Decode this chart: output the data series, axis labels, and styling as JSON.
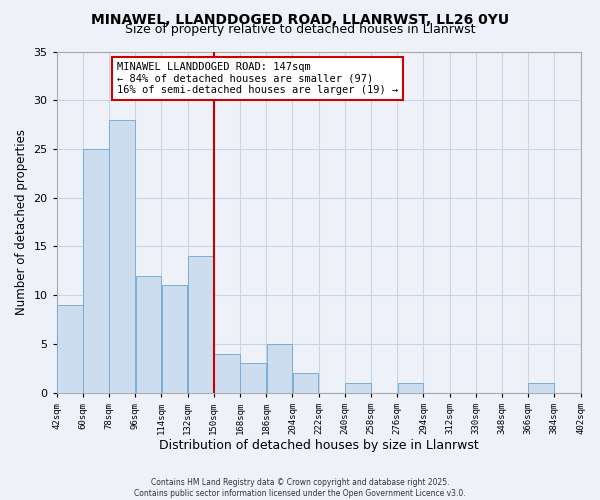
{
  "title_line1": "MINAWEL, LLANDDOGED ROAD, LLANRWST, LL26 0YU",
  "title_line2": "Size of property relative to detached houses in Llanrwst",
  "xlabel": "Distribution of detached houses by size in Llanrwst",
  "ylabel": "Number of detached properties",
  "bin_labels": [
    "42sqm",
    "60sqm",
    "78sqm",
    "96sqm",
    "114sqm",
    "132sqm",
    "150sqm",
    "168sqm",
    "186sqm",
    "204sqm",
    "222sqm",
    "240sqm",
    "258sqm",
    "276sqm",
    "294sqm",
    "312sqm",
    "330sqm",
    "348sqm",
    "366sqm",
    "384sqm",
    "402sqm"
  ],
  "bin_edges": [
    42,
    60,
    78,
    96,
    114,
    132,
    150,
    168,
    186,
    204,
    222,
    240,
    258,
    276,
    294,
    312,
    330,
    348,
    366,
    384,
    402
  ],
  "bar_values": [
    9,
    25,
    28,
    12,
    11,
    14,
    4,
    3,
    5,
    2,
    0,
    1,
    0,
    1,
    0,
    0,
    0,
    0,
    1,
    0,
    0
  ],
  "bar_color": "#ccddf0",
  "bar_edgecolor": "#7aadd4",
  "vline_x": 150,
  "vline_color": "#cc0000",
  "ylim": [
    0,
    35
  ],
  "yticks": [
    0,
    5,
    10,
    15,
    20,
    25,
    30,
    35
  ],
  "annotation_title": "MINAWEL LLANDDOGED ROAD: 147sqm",
  "annotation_line2": "← 84% of detached houses are smaller (97)",
  "annotation_line3": "16% of semi-detached houses are larger (19) →",
  "footer1": "Contains HM Land Registry data © Crown copyright and database right 2025.",
  "footer2": "Contains public sector information licensed under the Open Government Licence v3.0.",
  "background_color": "#eef2f8"
}
